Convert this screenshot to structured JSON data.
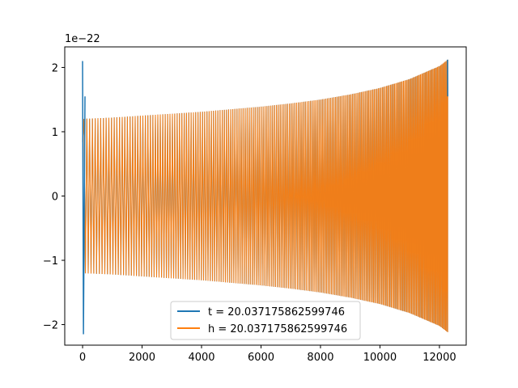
{
  "chart_data": {
    "type": "line",
    "title": "",
    "xlabel": "",
    "ylabel": "",
    "offset_text": "1e−22",
    "xlim": [
      -600,
      12900
    ],
    "ylim": [
      -2.32,
      2.32
    ],
    "x_ticks": [
      {
        "value": 0,
        "label": "0"
      },
      {
        "value": 2000,
        "label": "2000"
      },
      {
        "value": 4000,
        "label": "4000"
      },
      {
        "value": 6000,
        "label": "6000"
      },
      {
        "value": 8000,
        "label": "8000"
      },
      {
        "value": 10000,
        "label": "10000"
      },
      {
        "value": 12000,
        "label": "12000"
      }
    ],
    "y_ticks": [
      {
        "value": -2,
        "label": "−2"
      },
      {
        "value": -1,
        "label": "−1"
      },
      {
        "value": 0,
        "label": "0"
      },
      {
        "value": 1,
        "label": "1"
      },
      {
        "value": 2,
        "label": "2"
      }
    ],
    "grid": false,
    "legend_position": "lower center",
    "series": [
      {
        "name": "t = 20.037175862599746",
        "color": "#1f77b4",
        "description_points": {
          "x": [
            0,
            30,
            80,
            12270,
            12280
          ],
          "y": [
            2.1,
            -2.15,
            1.55,
            2.12,
            1.55
          ]
        }
      },
      {
        "name": "h = 20.037175862599746",
        "color": "#ff7f0e",
        "envelope": {
          "x": [
            0,
            1000,
            2000,
            3000,
            4000,
            5000,
            6000,
            7000,
            8000,
            9000,
            10000,
            11000,
            12000,
            12280
          ],
          "amplitude": [
            1.2,
            1.22,
            1.25,
            1.28,
            1.31,
            1.35,
            1.39,
            1.44,
            1.5,
            1.58,
            1.68,
            1.82,
            2.02,
            2.12
          ]
        },
        "period_start": 95,
        "period_end": 35
      }
    ]
  }
}
